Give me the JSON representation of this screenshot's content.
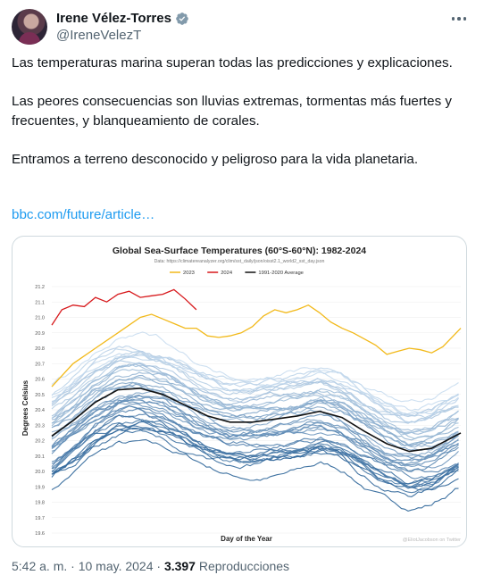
{
  "tweet": {
    "display_name": "Irene Vélez-Torres",
    "handle": "@IreneVelezT",
    "verified_icon": "verified-badge-icon",
    "paragraphs": [
      "Las temperaturas marina superan todas las predicciones y explicaciones.",
      "Las peores consecuencias son lluvias extremas, tormentas más fuertes y frecuentes, y blanqueamiento de corales.",
      "Entramos a terreno desconocido y peligroso para la vida planetaria."
    ],
    "link_text": "bbc.com/future/article…",
    "timestamp": "5:42 a. m. · 10 may. 2024 · ",
    "views_count": "3.397",
    "views_label": " Reproducciones"
  },
  "chart_data": {
    "type": "line",
    "title": "Global Sea-Surface Temperatures (60°S-60°N): 1982-2024",
    "subtitle": "Data: https://climatereanalyzer.org/clim/sst_daily/json/oisst2.1_world2_sst_day.json",
    "xlabel": "Day of the Year",
    "ylabel": "Degrees Celsius",
    "ylim": [
      19.6,
      21.2
    ],
    "yticks": [
      "21.2",
      "21.1",
      "21.0",
      "20.9",
      "20.8",
      "20.7",
      "20.6",
      "20.5",
      "20.4",
      "20.3",
      "20.2",
      "20.1",
      "20.0",
      "19.9",
      "19.8",
      "19.7",
      "19.6"
    ],
    "xlim": [
      1,
      366
    ],
    "credit": "@EliotJacobson on Twitter",
    "legend": [
      "2023",
      "2024",
      "1991-2020 Average"
    ],
    "series": [
      {
        "name": "2023",
        "color": "#f2b91a",
        "x": [
          1,
          20,
          40,
          60,
          80,
          90,
          100,
          110,
          120,
          130,
          140,
          150,
          160,
          170,
          180,
          190,
          200,
          210,
          220,
          230,
          240,
          250,
          260,
          270,
          280,
          290,
          300,
          310,
          320,
          330,
          340,
          350,
          366
        ],
        "y": [
          20.55,
          20.7,
          20.8,
          20.9,
          21.0,
          21.02,
          20.99,
          20.96,
          20.93,
          20.93,
          20.88,
          20.87,
          20.88,
          20.9,
          20.94,
          21.01,
          21.05,
          21.03,
          21.05,
          21.08,
          21.03,
          20.97,
          20.93,
          20.9,
          20.86,
          20.82,
          20.76,
          20.78,
          20.8,
          20.79,
          20.77,
          20.81,
          20.93
        ]
      },
      {
        "name": "2024",
        "color": "#d7191c",
        "x": [
          1,
          10,
          20,
          30,
          40,
          50,
          60,
          70,
          80,
          90,
          100,
          110,
          120,
          130
        ],
        "y": [
          20.95,
          21.05,
          21.08,
          21.07,
          21.13,
          21.1,
          21.15,
          21.17,
          21.13,
          21.14,
          21.15,
          21.18,
          21.12,
          21.05
        ]
      },
      {
        "name": "1991-2020 Average",
        "color": "#111111",
        "x": [
          1,
          20,
          40,
          60,
          80,
          100,
          120,
          140,
          160,
          180,
          200,
          220,
          240,
          260,
          280,
          300,
          320,
          340,
          366
        ],
        "y": [
          20.23,
          20.33,
          20.45,
          20.53,
          20.54,
          20.5,
          20.43,
          20.36,
          20.32,
          20.32,
          20.34,
          20.36,
          20.39,
          20.35,
          20.26,
          20.18,
          20.13,
          20.15,
          20.25
        ]
      }
    ],
    "historic_years_range": "1982-2022",
    "historic_color_range": [
      "#1f5a92",
      "#c6dbef"
    ]
  }
}
